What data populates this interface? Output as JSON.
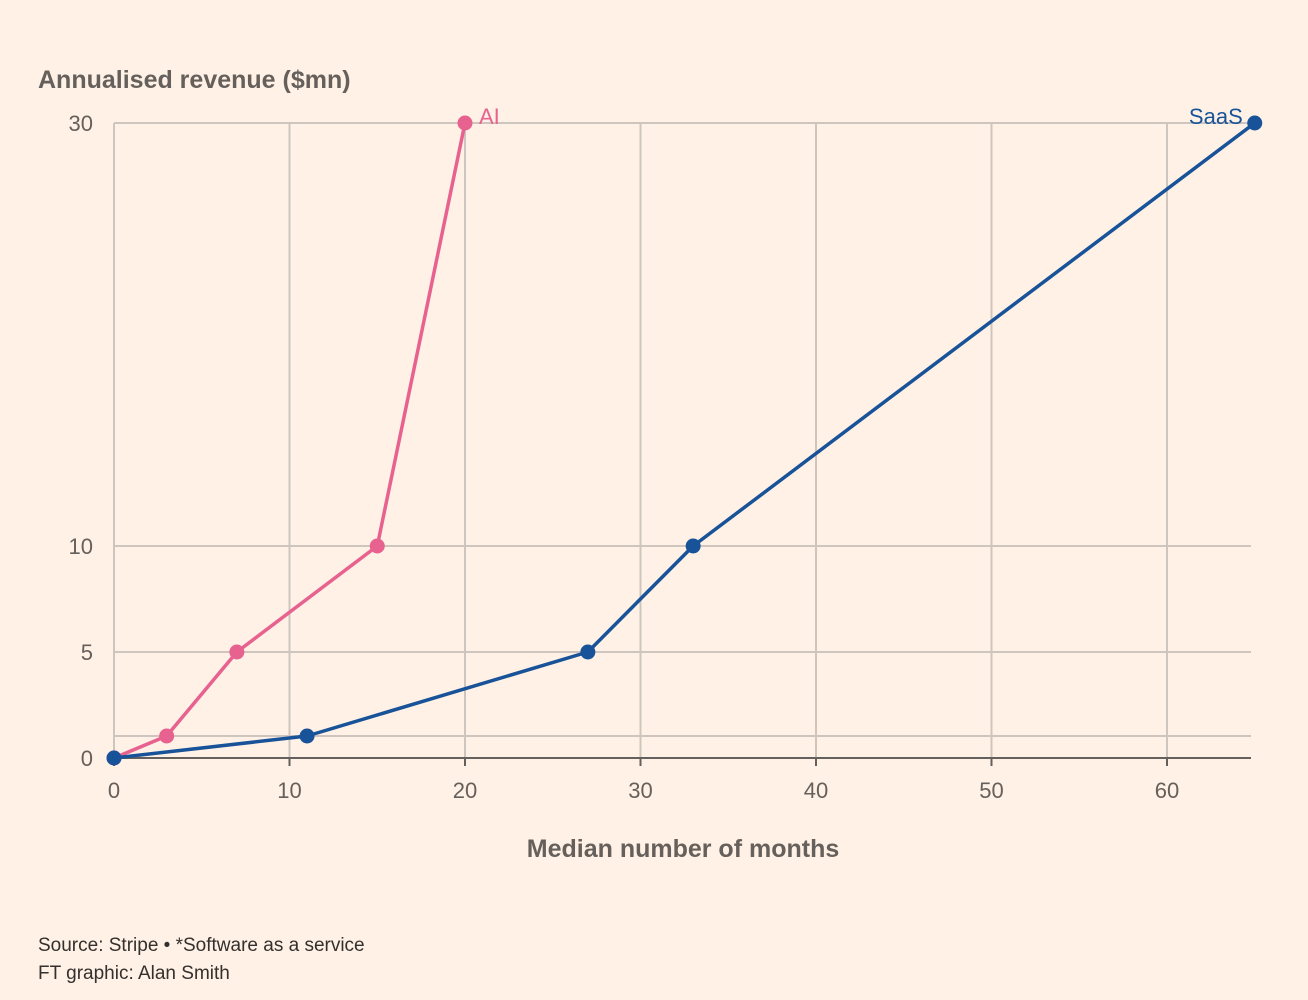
{
  "chart_data": {
    "type": "line",
    "title": "",
    "ylabel": "Annualised revenue ($mn)",
    "xlabel": "Median number of months",
    "xlim": [
      0,
      65
    ],
    "ylim": [
      0,
      30
    ],
    "y_ticks": [
      0,
      5,
      10,
      30
    ],
    "y_ticks_unlabeled": [
      1
    ],
    "x_ticks": [
      0,
      10,
      20,
      30,
      40,
      50,
      60
    ],
    "grid": true,
    "series": [
      {
        "name": "AI",
        "color": "#E8628F",
        "points": [
          {
            "x": 0,
            "y": 0
          },
          {
            "x": 3,
            "y": 1
          },
          {
            "x": 7,
            "y": 5
          },
          {
            "x": 15,
            "y": 10
          },
          {
            "x": 20,
            "y": 30
          }
        ]
      },
      {
        "name": "SaaS",
        "color": "#185399",
        "points": [
          {
            "x": 0,
            "y": 0
          },
          {
            "x": 11,
            "y": 1
          },
          {
            "x": 27,
            "y": 5
          },
          {
            "x": 33,
            "y": 10
          },
          {
            "x": 65,
            "y": 30
          }
        ]
      }
    ]
  },
  "footer": {
    "source": "Source: Stripe • *Software as a service",
    "credit": "FT graphic: Alan Smith"
  },
  "colors": {
    "background": "#FFF1E5",
    "grid": "#CEC6BE",
    "axis": "#66605C"
  }
}
